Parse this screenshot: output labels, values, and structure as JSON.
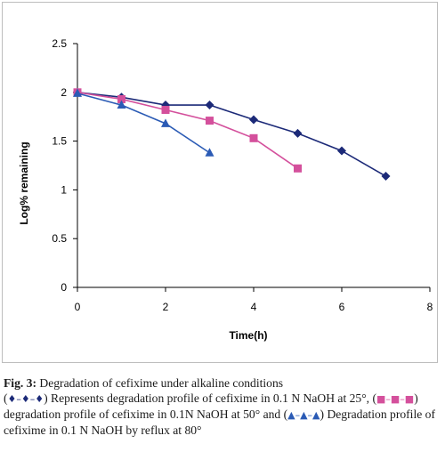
{
  "chart_data": {
    "type": "line",
    "title": "",
    "xlabel": "Time(h)",
    "ylabel": "Log% remaining",
    "xlim": [
      0,
      8
    ],
    "ylim": [
      0,
      2.5
    ],
    "x_ticks": [
      0,
      2,
      4,
      6,
      8
    ],
    "x_tick_labels": [
      "0",
      "2",
      "4",
      "6",
      "8"
    ],
    "y_ticks": [
      0,
      0.5,
      1,
      1.5,
      2,
      2.5
    ],
    "y_tick_labels": [
      "0",
      "0.5",
      "1",
      "1.5",
      "2",
      "2.5"
    ],
    "grid": false,
    "legend": "none",
    "series": [
      {
        "marker": "diamond",
        "color": "#1c2a78",
        "points": [
          [
            0,
            2.0
          ],
          [
            1,
            1.95
          ],
          [
            2,
            1.87
          ],
          [
            3,
            1.87
          ],
          [
            4,
            1.72
          ],
          [
            5,
            1.58
          ],
          [
            6,
            1.4
          ],
          [
            7,
            1.14
          ]
        ]
      },
      {
        "marker": "square",
        "color": "#d4509c",
        "points": [
          [
            0,
            2.0
          ],
          [
            1,
            1.93
          ],
          [
            2,
            1.82
          ],
          [
            3,
            1.71
          ],
          [
            4,
            1.53
          ],
          [
            5,
            1.22
          ]
        ]
      },
      {
        "marker": "triangle",
        "color": "#2b5bb5",
        "points": [
          [
            0,
            1.99
          ],
          [
            1,
            1.87
          ],
          [
            2,
            1.68
          ],
          [
            3,
            1.38
          ]
        ]
      }
    ]
  },
  "caption": {
    "fig_label": "Fig.  3:",
    "title": " Degradation of cefixime under alkaline conditions",
    "open_paren_1": "(",
    "sym_1": "♦–♦–♦",
    "text_1": ") Represents degradation profile of cefixime in 0.1 N NaOH at 25°, (",
    "sym_2": "■–■–■",
    "text_2": ") degradation profile of cefixime in 0.1N NaOH at 50° and (",
    "sym_3": "▲–▲–▲",
    "text_3": ") Degradation profile of cefixime in 0.1 N NaOH by reflux at 80°"
  }
}
